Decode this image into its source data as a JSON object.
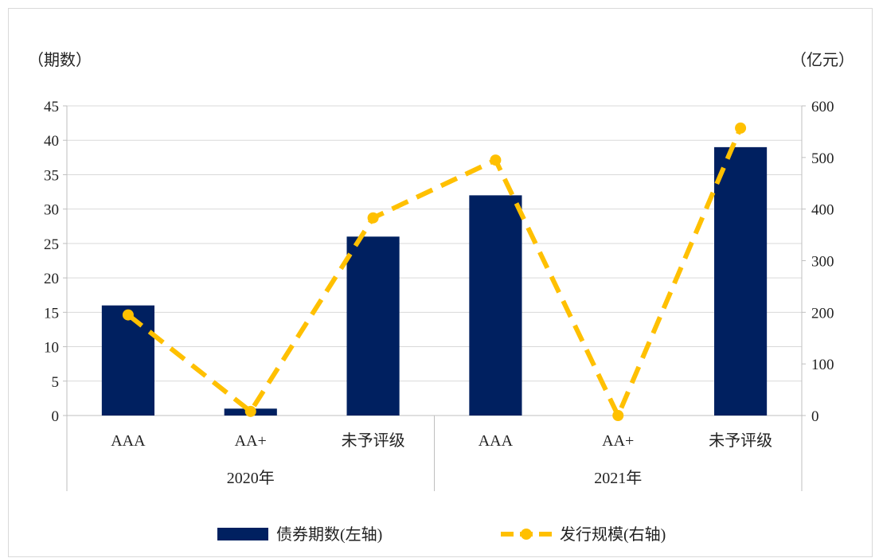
{
  "chart_data": {
    "type": "bar+line",
    "left_axis_unit": "（期数）",
    "right_axis_unit": "（亿元）",
    "groups": [
      {
        "label": "2020年",
        "categories": [
          "AAA",
          "AA+",
          "未予评级"
        ]
      },
      {
        "label": "2021年",
        "categories": [
          "AAA",
          "AA+",
          "未予评级"
        ]
      }
    ],
    "series": [
      {
        "name": "债券期数(左轴)",
        "type": "bar",
        "axis": "left",
        "color": "#002060",
        "values": [
          16,
          1,
          26,
          32,
          0,
          39
        ]
      },
      {
        "name": "发行规模(右轴)",
        "type": "line",
        "axis": "right",
        "style": "dashed",
        "marker": "circle",
        "color": "#FFC000",
        "values": [
          195,
          8,
          383,
          495,
          0,
          557
        ]
      }
    ],
    "y_left": {
      "min": 0,
      "max": 45,
      "step": 5,
      "ticks": [
        "0",
        "5",
        "10",
        "15",
        "20",
        "25",
        "30",
        "35",
        "40",
        "45"
      ]
    },
    "y_right": {
      "min": 0,
      "max": 600,
      "step": 100,
      "ticks": [
        "0",
        "100",
        "200",
        "300",
        "400",
        "500",
        "600"
      ]
    },
    "grid": true,
    "legend_position": "bottom"
  }
}
